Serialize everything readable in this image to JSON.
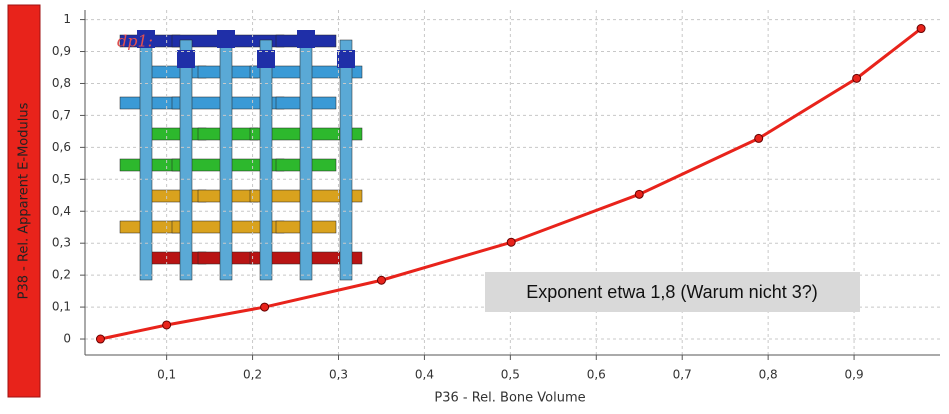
{
  "chart_data": {
    "type": "line",
    "x_label": "P36 - Rel. Bone Volume",
    "y_label": "P38 - Rel. Apparent E-Modulus",
    "annotations": [
      "dp1:",
      "Exponent etwa 1,8 (Warum nicht 3?)"
    ],
    "series": [
      {
        "name": "P38",
        "color": "#e8231b",
        "x": [
          0.023,
          0.1,
          0.214,
          0.35,
          0.501,
          0.65,
          0.789,
          0.903,
          0.978
        ],
        "values": [
          0,
          0.044,
          0.1,
          0.184,
          0.303,
          0.453,
          0.628,
          0.816,
          0.972
        ]
      }
    ],
    "xlim": [
      0.005,
      1.0
    ],
    "ylim": [
      -0.05,
      1.03
    ],
    "xticks": [
      {
        "value": 0.1,
        "label": "0,1"
      },
      {
        "value": 0.2,
        "label": "0,2"
      },
      {
        "value": 0.3,
        "label": "0,3"
      },
      {
        "value": 0.4,
        "label": "0,4"
      },
      {
        "value": 0.5,
        "label": "0,5"
      },
      {
        "value": 0.6,
        "label": "0,6"
      },
      {
        "value": 0.7,
        "label": "0,7"
      },
      {
        "value": 0.8,
        "label": "0,8"
      },
      {
        "value": 0.9,
        "label": "0,9"
      }
    ],
    "yticks": [
      0,
      {
        "value": 0.1,
        "label": "0,1"
      },
      {
        "value": 0.2,
        "label": "0,2"
      },
      {
        "value": 0.3,
        "label": "0,3"
      },
      {
        "value": 0.4,
        "label": "0,4"
      },
      {
        "value": 0.5,
        "label": "0,5"
      },
      {
        "value": 0.6,
        "label": "0,6"
      },
      {
        "value": 0.7,
        "label": "0,7"
      },
      {
        "value": 0.8,
        "label": "0,8"
      },
      {
        "value": 0.9,
        "label": "0,9"
      },
      1
    ],
    "grid": true
  }
}
